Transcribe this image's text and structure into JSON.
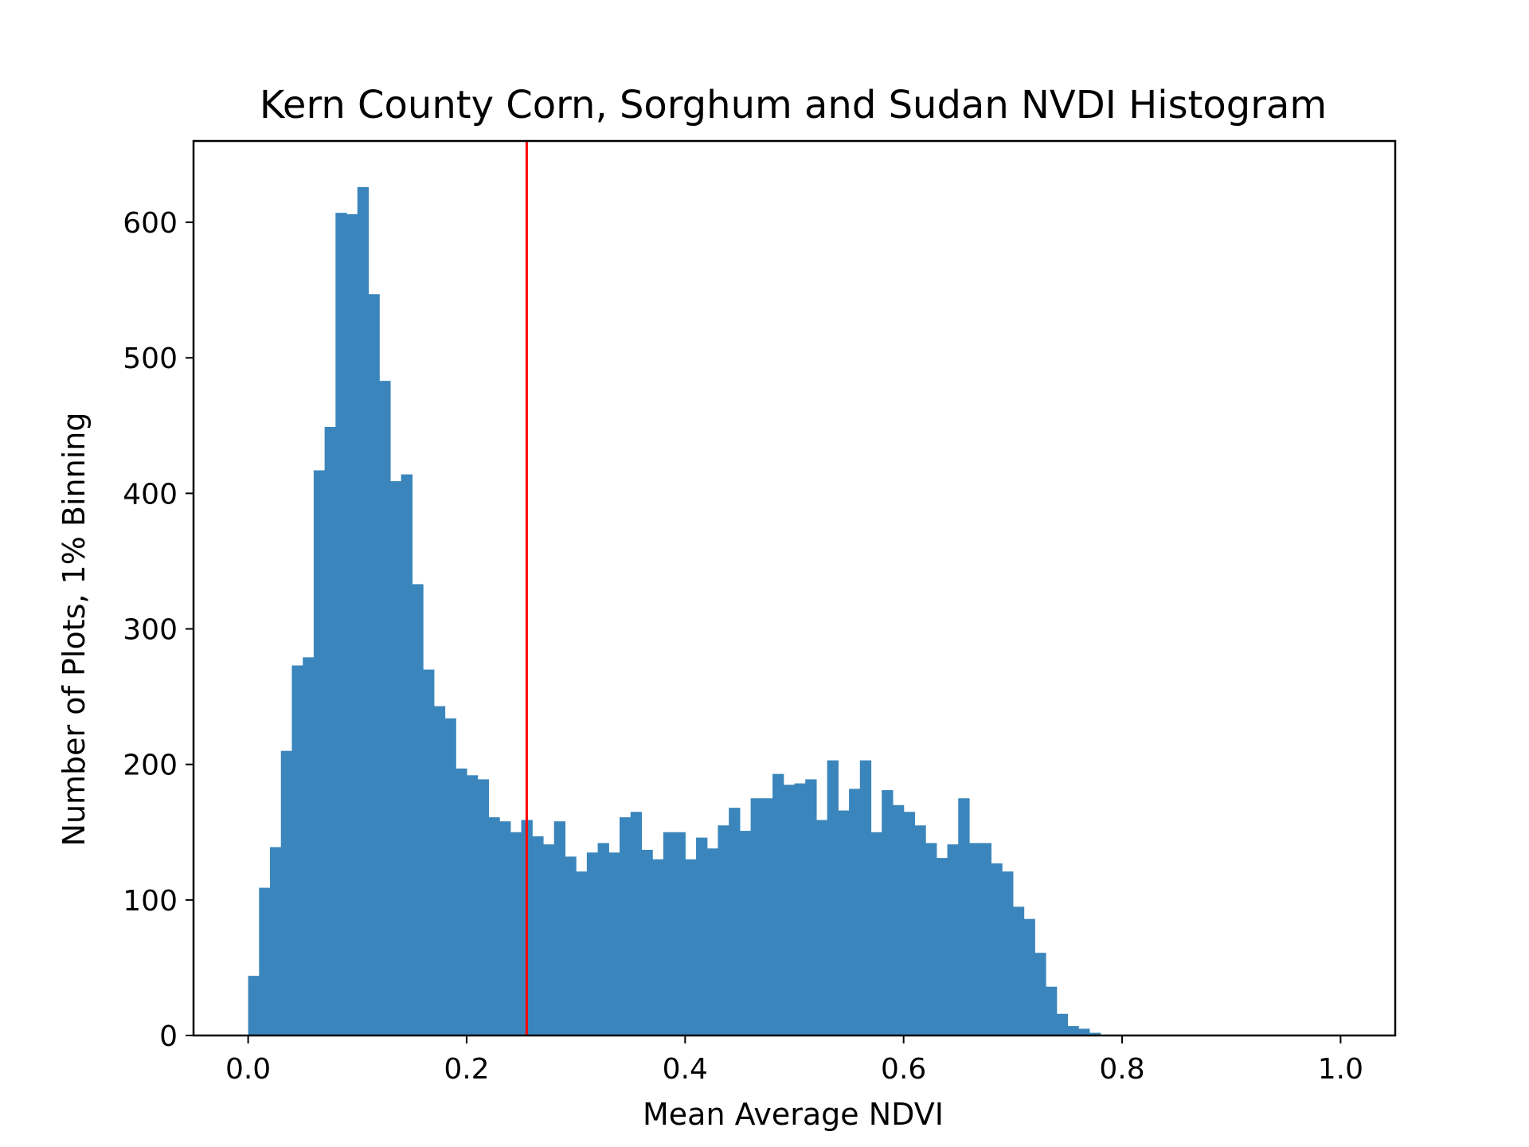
{
  "chart_data": {
    "type": "bar",
    "title": "Kern County Corn, Sorghum and Sudan NVDI Histogram",
    "xlabel": "Mean Average NDVI",
    "ylabel": "Number of Plots, 1% Binning",
    "xlim": [
      -0.05,
      1.05
    ],
    "ylim": [
      0,
      660
    ],
    "xticks": [
      0.0,
      0.2,
      0.4,
      0.6,
      0.8,
      1.0
    ],
    "xtick_labels": [
      "0.0",
      "0.2",
      "0.4",
      "0.6",
      "0.8",
      "1.0"
    ],
    "yticks": [
      0,
      100,
      200,
      300,
      400,
      500,
      600
    ],
    "ytick_labels": [
      "0",
      "100",
      "200",
      "300",
      "400",
      "500",
      "600"
    ],
    "bin_start": 0.0,
    "bin_width": 0.01,
    "values": [
      44,
      109,
      139,
      210,
      273,
      279,
      417,
      449,
      607,
      606,
      626,
      547,
      483,
      409,
      414,
      333,
      270,
      243,
      234,
      197,
      192,
      189,
      161,
      158,
      150,
      159,
      147,
      141,
      158,
      132,
      121,
      135,
      142,
      135,
      161,
      165,
      137,
      130,
      150,
      150,
      130,
      146,
      138,
      155,
      168,
      151,
      175,
      175,
      193,
      185,
      186,
      189,
      159,
      203,
      166,
      182,
      203,
      150,
      181,
      170,
      165,
      155,
      142,
      131,
      141,
      175,
      142,
      142,
      127,
      121,
      95,
      86,
      61,
      36,
      16,
      7,
      5,
      2,
      0,
      0,
      0,
      0,
      0,
      0,
      0,
      0,
      0,
      0,
      0,
      0,
      0,
      0,
      0,
      0,
      0,
      0,
      0,
      0,
      0,
      0
    ],
    "vline": {
      "x": 0.255,
      "color": "#ff0000"
    },
    "bar_color": "#3a86bc",
    "grid": false,
    "legend": false
  }
}
